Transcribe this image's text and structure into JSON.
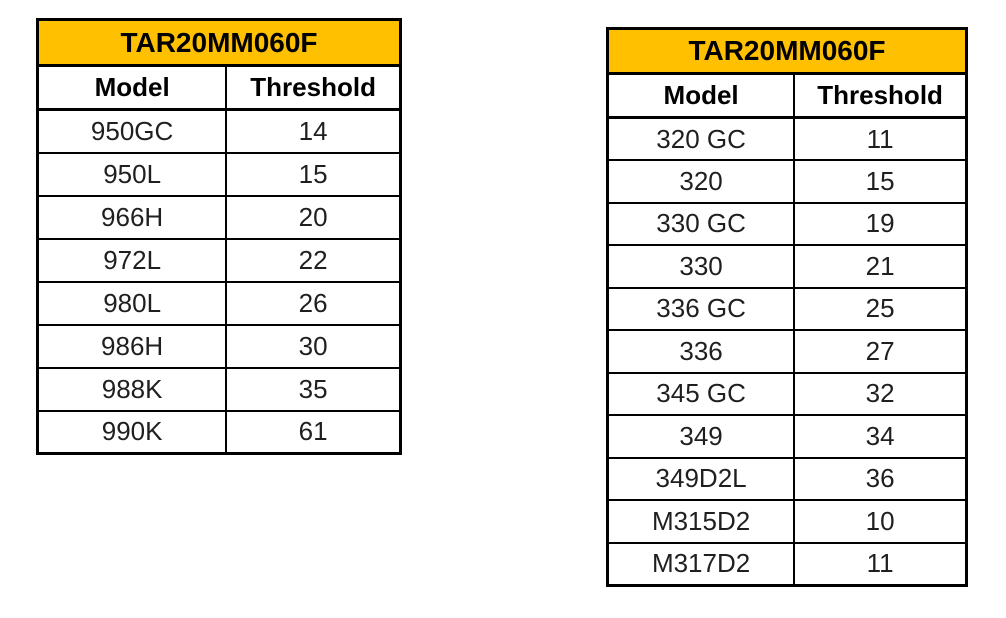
{
  "colors": {
    "background": "#ffffff",
    "border": "#000000",
    "title_fill": "#FFC000",
    "title_text": "#000000",
    "header_text": "#000000",
    "cell_text": "#1f1f1f"
  },
  "chart_data": [
    {
      "type": "table",
      "title": "TAR20MM060F",
      "columns": [
        "Model",
        "Threshold"
      ],
      "rows": [
        [
          "950GC",
          14
        ],
        [
          "950L",
          15
        ],
        [
          "966H",
          20
        ],
        [
          "972L",
          22
        ],
        [
          "980L",
          26
        ],
        [
          "986H",
          30
        ],
        [
          "988K",
          35
        ],
        [
          "990K",
          61
        ]
      ]
    },
    {
      "type": "table",
      "title": "TAR20MM060F",
      "columns": [
        "Model",
        "Threshold"
      ],
      "rows": [
        [
          "320 GC",
          11
        ],
        [
          "320",
          15
        ],
        [
          "330 GC",
          19
        ],
        [
          "330",
          21
        ],
        [
          "336 GC",
          25
        ],
        [
          "336",
          27
        ],
        [
          "345 GC",
          32
        ],
        [
          "349",
          34
        ],
        [
          "349D2L",
          36
        ],
        [
          "M315D2",
          10
        ],
        [
          "M317D2",
          11
        ]
      ]
    }
  ]
}
